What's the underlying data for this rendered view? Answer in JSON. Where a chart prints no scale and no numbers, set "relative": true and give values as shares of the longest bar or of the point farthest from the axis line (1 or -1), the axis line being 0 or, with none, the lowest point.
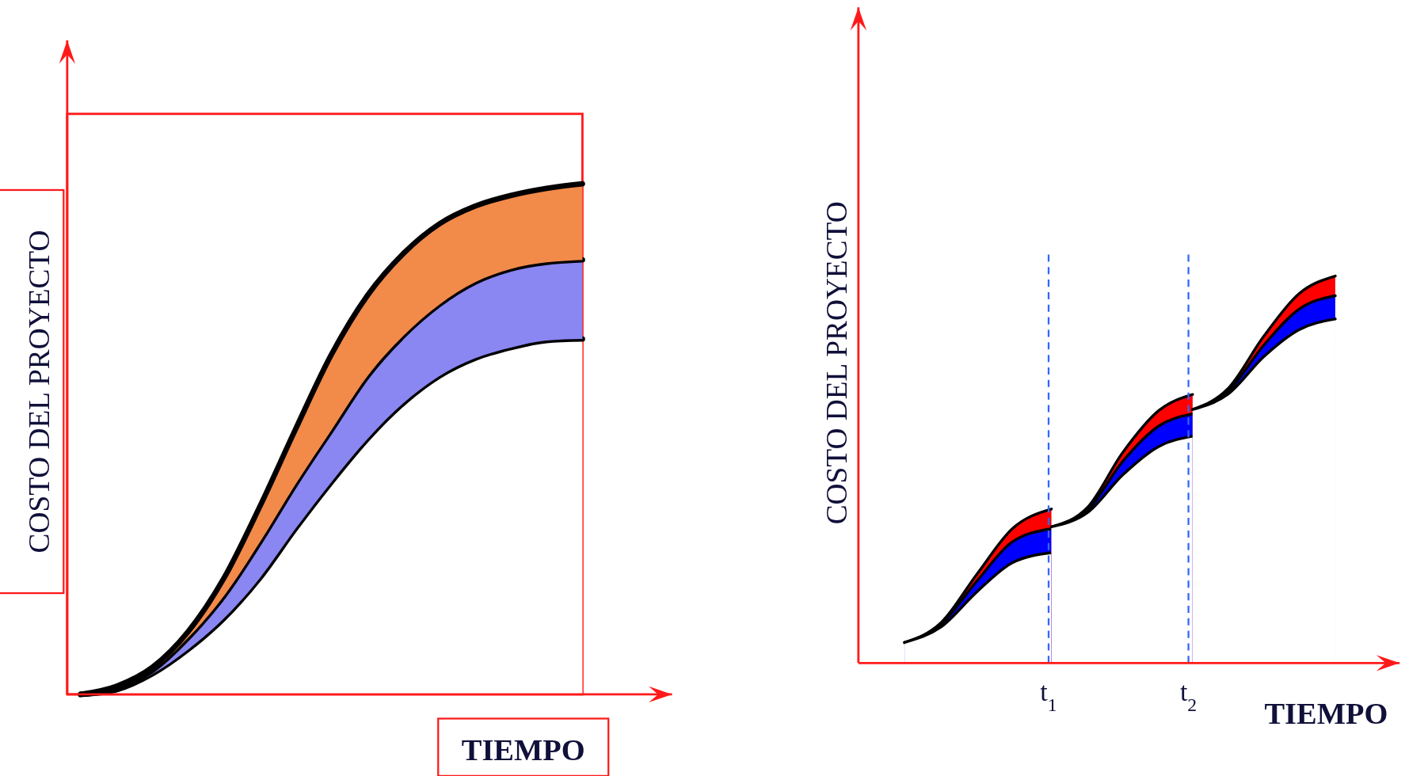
{
  "chart_data": [
    {
      "type": "area",
      "stacked": true,
      "relative": true,
      "tick_labels": false,
      "xlabel": "TIEMPO",
      "ylabel": "COSTO DEL PROYECTO",
      "categories": [
        null,
        null,
        null,
        null,
        null,
        null,
        null,
        null,
        null,
        null,
        null,
        null,
        null,
        null,
        null
      ],
      "series": [
        {
          "color": "#ffffff",
          "values": [
            0,
            0.009,
            0.04,
            0.088,
            0.149,
            0.228,
            0.325,
            0.416,
            0.5,
            0.57,
            0.623,
            0.658,
            0.679,
            0.693,
            0.696
          ]
        },
        {
          "color": "#8a86f2",
          "values": [
            0,
            0.003,
            0.007,
            0.023,
            0.044,
            0.07,
            0.087,
            0.102,
            0.123,
            0.132,
            0.14,
            0.149,
            0.154,
            0.153,
            0.155
          ]
        },
        {
          "color": "#f28a4a",
          "values": [
            0,
            0.004,
            0.006,
            0.012,
            0.035,
            0.07,
            0.108,
            0.148,
            0.158,
            0.161,
            0.158,
            0.149,
            0.144,
            0.145,
            0.149
          ]
        }
      ]
    },
    {
      "type": "area",
      "relative": true,
      "tick_labels": "x",
      "xlabel": "TIEMPO",
      "ylabel": "COSTO DEL PROYECTO",
      "xlim": [
        -0.36,
        3.51
      ],
      "xticks": [
        {
          "value": 1,
          "label": "t$_{1}$"
        },
        {
          "value": 2,
          "label": "t$_{2}$"
        }
      ],
      "ref_lines": [
        {
          "axis": "x",
          "value": 1,
          "color": "#3366ff",
          "line_style": "dashed"
        },
        {
          "axis": "x",
          "value": 2,
          "color": "#3366ff",
          "line_style": "dashed"
        }
      ],
      "series": [
        {
          "color": "#ff0000",
          "x": [
            -0.03,
            0.23,
            0.49,
            0.74,
            1.02
          ],
          "values": [
            0.053,
            0.104,
            0.231,
            0.347,
            0.398
          ]
        },
        {
          "color": "#0000ff",
          "x": [
            -0.03,
            0.23,
            0.49,
            0.74,
            1.02
          ],
          "values": [
            0.053,
            0.1,
            0.213,
            0.313,
            0.347
          ]
        },
        {
          "color": "#ffffff",
          "x": [
            -0.03,
            0.23,
            0.49,
            0.74,
            1.02
          ],
          "values": [
            0.053,
            0.093,
            0.185,
            0.259,
            0.285
          ]
        },
        {
          "color": "#ff0000",
          "x": [
            1.02,
            1.28,
            1.53,
            1.79,
            2.03
          ],
          "values": [
            0.352,
            0.403,
            0.544,
            0.653,
            0.694
          ]
        },
        {
          "color": "#0000ff",
          "x": [
            1.02,
            1.28,
            1.53,
            1.79,
            2.03
          ],
          "values": [
            0.352,
            0.396,
            0.521,
            0.613,
            0.644
          ]
        },
        {
          "color": "#ffffff",
          "x": [
            1.02,
            1.28,
            1.53,
            1.79,
            2.03
          ],
          "values": [
            0.352,
            0.389,
            0.486,
            0.56,
            0.586
          ]
        },
        {
          "color": "#ff0000",
          "x": [
            2.03,
            2.28,
            2.54,
            2.79,
            3.05
          ],
          "values": [
            0.655,
            0.708,
            0.845,
            0.954,
            1
          ]
        },
        {
          "color": "#0000ff",
          "x": [
            2.03,
            2.28,
            2.54,
            2.79,
            3.05
          ],
          "values": [
            0.655,
            0.701,
            0.822,
            0.914,
            0.949
          ]
        },
        {
          "color": "#ffffff",
          "x": [
            2.03,
            2.28,
            2.54,
            2.79,
            3.05
          ],
          "values": [
            0.655,
            0.694,
            0.792,
            0.861,
            0.889
          ]
        }
      ]
    }
  ]
}
